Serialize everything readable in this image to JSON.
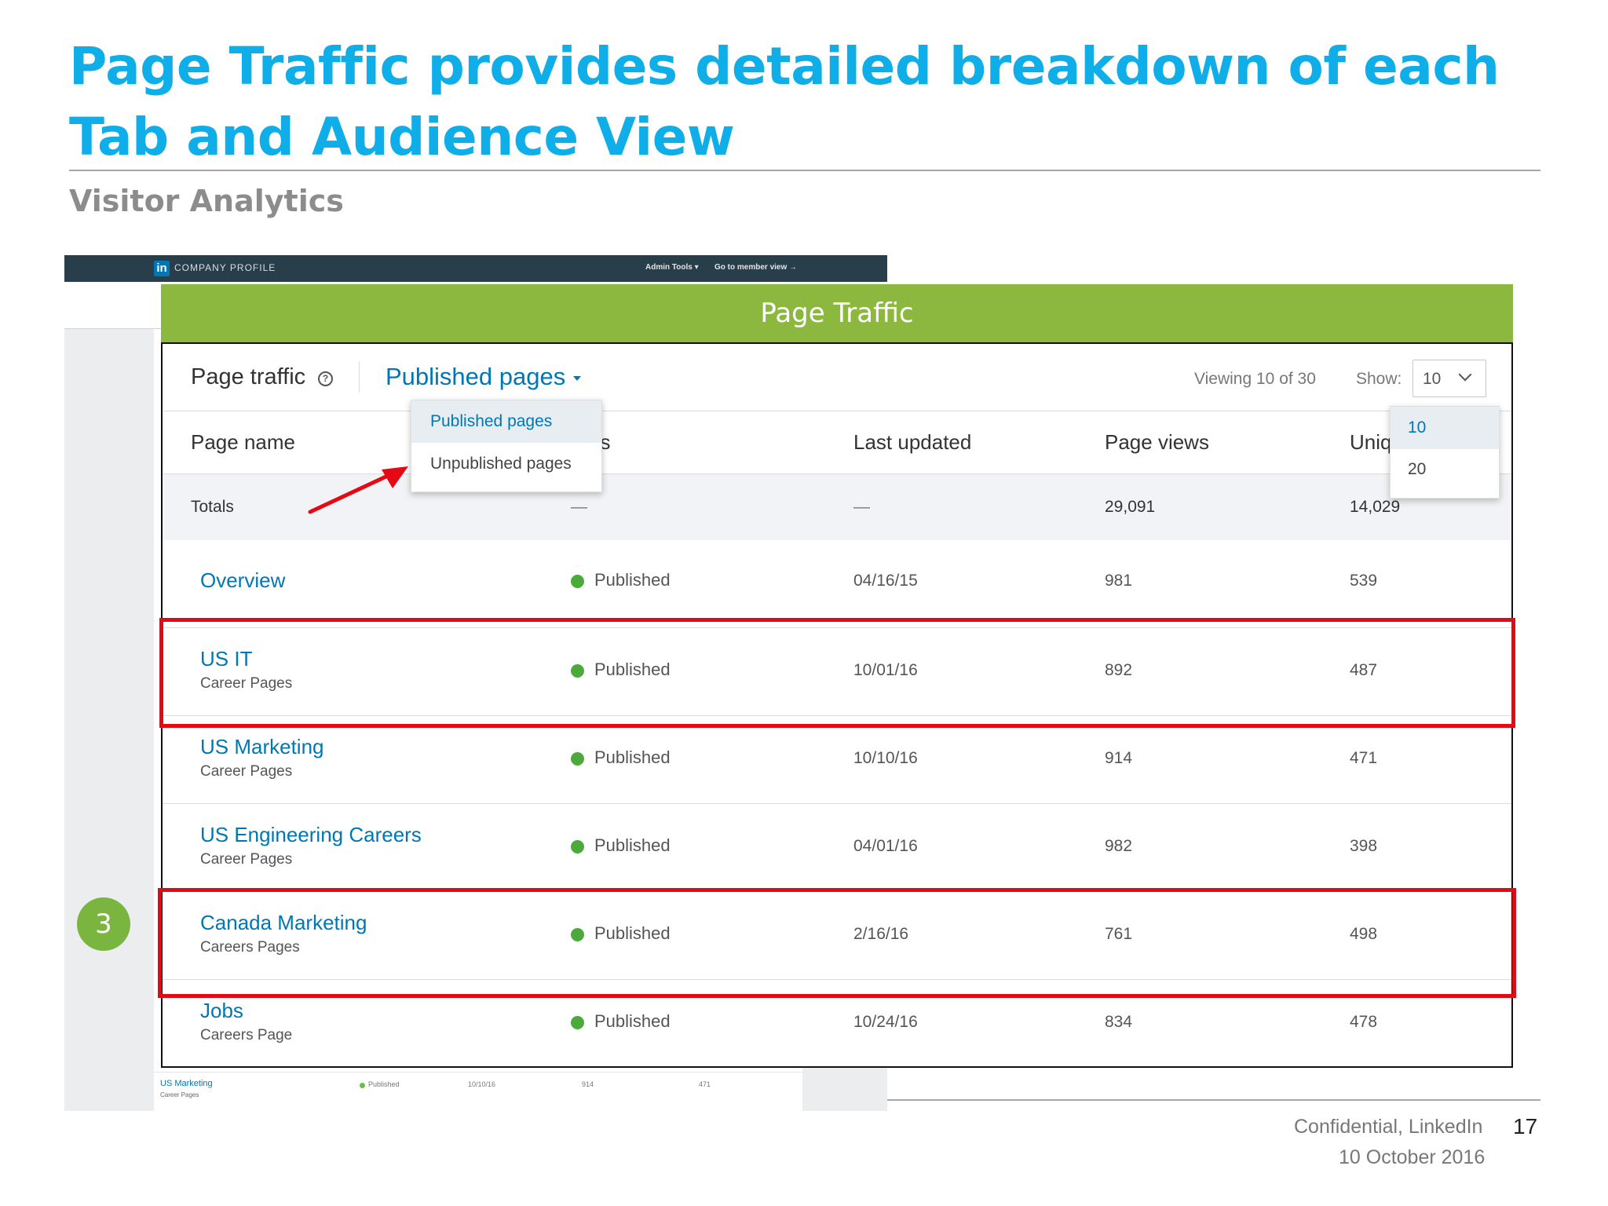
{
  "slide": {
    "title": "Page Traffic provides detailed breakdown of each Tab and Audience View",
    "subtitle": "Visitor Analytics",
    "banner": "Page Traffic",
    "step_number": "3",
    "footer_confidential": "Confidential, LinkedIn",
    "footer_date": "10 October 2016",
    "page_number": "17"
  },
  "background_screenshot": {
    "logo": "in",
    "brand": "COMPANY PROFILE",
    "admin_tools": "Admin Tools ▾",
    "member_view": "Go to member view →",
    "row": {
      "name": "US Marketing",
      "sub": "Career Pages",
      "status": "Published",
      "date": "10/10/16",
      "views": "914",
      "uniq": "471"
    }
  },
  "panel": {
    "title": "Page traffic",
    "help_icon": "?",
    "pages_select": "Published pages",
    "viewing": "Viewing 10 of 30",
    "show_label": "Show:",
    "show_value": "10",
    "pages_options": [
      "Published pages",
      "Unpublished pages"
    ],
    "show_options": [
      "10",
      "20"
    ]
  },
  "table": {
    "headers": {
      "page_name": "Page name",
      "status": "us",
      "last_updated": "Last updated",
      "page_views": "Page views",
      "unique": "Uniq"
    },
    "totals": {
      "label": "Totals",
      "status": "—",
      "date": "—",
      "views": "29,091",
      "unique": "14,029"
    },
    "rows": [
      {
        "name": "Overview",
        "sub": "",
        "status": "Published",
        "date": "04/16/15",
        "views": "981",
        "unique": "539"
      },
      {
        "name": "US IT",
        "sub": "Career Pages",
        "status": "Published",
        "date": "10/01/16",
        "views": "892",
        "unique": "487"
      },
      {
        "name": "US Marketing",
        "sub": "Career Pages",
        "status": "Published",
        "date": "10/10/16",
        "views": "914",
        "unique": "471"
      },
      {
        "name": "US Engineering Careers",
        "sub": "Career Pages",
        "status": "Published",
        "date": "04/01/16",
        "views": "982",
        "unique": "398"
      },
      {
        "name": "Canada Marketing",
        "sub": "Careers Pages",
        "status": "Published",
        "date": "2/16/16",
        "views": "761",
        "unique": "498"
      },
      {
        "name": "Jobs",
        "sub": "Careers Page",
        "status": "Published",
        "date": "10/24/16",
        "views": "834",
        "unique": "478"
      }
    ]
  },
  "colors": {
    "title_blue": "#10aee8",
    "banner_green": "#8cb840",
    "link_blue": "#0077b5",
    "highlight_red": "#e50914",
    "status_green": "#4aab3b"
  }
}
